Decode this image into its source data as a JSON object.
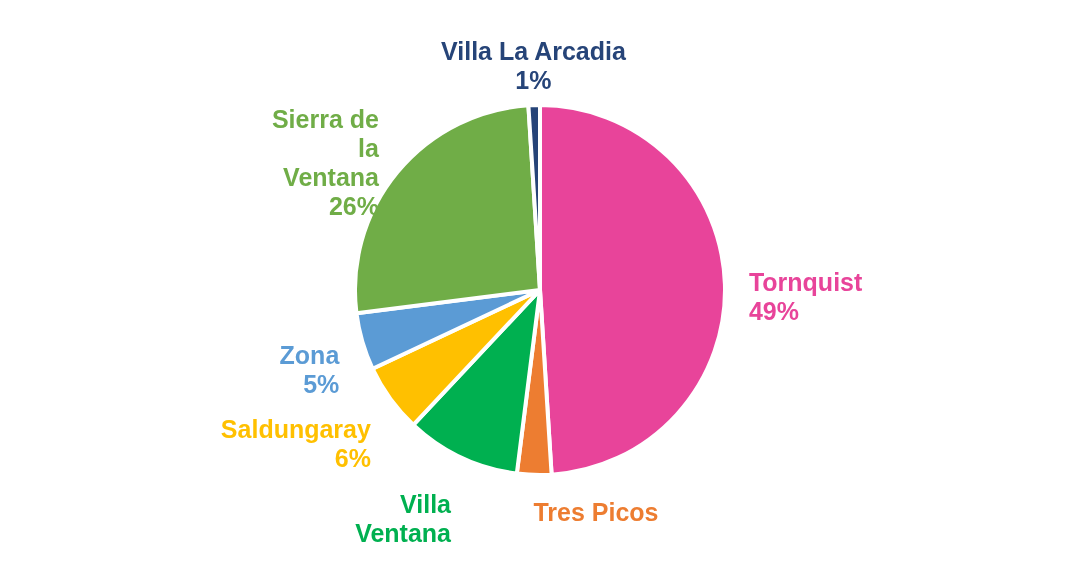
{
  "chart_data": {
    "type": "pie",
    "categories": [
      "Tornquist",
      "Tres Picos",
      "Villa Ventana",
      "Saldungaray",
      "Zona",
      "Sierra de la Ventana",
      "Villa La Arcadia"
    ],
    "values": [
      49,
      3,
      10,
      6,
      5,
      26,
      1
    ],
    "colors": [
      "#e8449a",
      "#ed7d31",
      "#00b050",
      "#ffc000",
      "#5b9bd5",
      "#70ad47",
      "#264478"
    ],
    "value_labels": [
      "49%",
      null,
      null,
      "6%",
      "5%",
      "26%",
      "1%"
    ]
  }
}
